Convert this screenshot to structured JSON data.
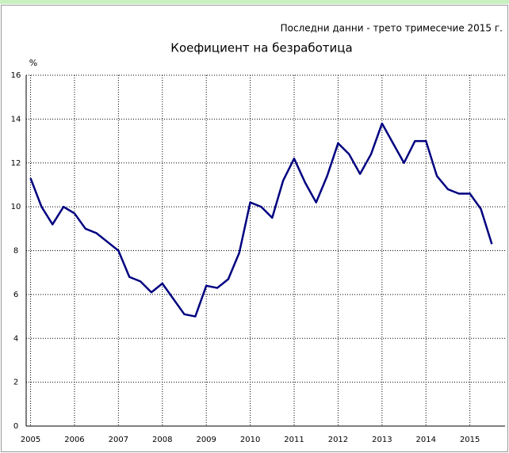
{
  "chart_data": {
    "type": "line",
    "title": "Коефициент на безработица",
    "subtitle": "Последни данни - трето тримесечие 2015 г.",
    "y_label": "%",
    "x": [
      2005,
      2005.25,
      2005.5,
      2005.75,
      2006,
      2006.25,
      2006.5,
      2006.75,
      2007,
      2007.25,
      2007.5,
      2007.75,
      2008,
      2008.25,
      2008.5,
      2008.75,
      2009,
      2009.25,
      2009.5,
      2009.75,
      2010,
      2010.25,
      2010.5,
      2010.75,
      2011,
      2011.25,
      2011.5,
      2011.75,
      2012,
      2012.25,
      2012.5,
      2012.75,
      2013,
      2013.25,
      2013.5,
      2013.75,
      2014,
      2014.25,
      2014.5,
      2014.75,
      2015,
      2015.25,
      2015.5
    ],
    "series": [
      {
        "name": "Коефициент на безработица",
        "color": "#000080",
        "values": [
          11.3,
          10.0,
          9.2,
          10.0,
          9.7,
          9.0,
          8.8,
          8.4,
          8.0,
          6.8,
          6.6,
          6.1,
          6.5,
          5.8,
          5.1,
          5.0,
          6.4,
          6.3,
          6.7,
          7.9,
          10.2,
          10.0,
          9.5,
          11.2,
          12.2,
          11.1,
          10.2,
          11.4,
          12.9,
          12.4,
          11.5,
          12.4,
          13.8,
          12.9,
          12.0,
          13.0,
          13.0,
          11.4,
          10.8,
          10.6,
          10.6,
          9.9,
          8.3
        ]
      }
    ],
    "xlim": [
      2004.9,
      2015.8
    ],
    "xticks": [
      2005,
      2006,
      2007,
      2008,
      2009,
      2010,
      2011,
      2012,
      2013,
      2014,
      2015
    ],
    "ylim": [
      0,
      16
    ],
    "yticks": [
      0,
      2,
      4,
      6,
      8,
      10,
      12,
      14,
      16
    ],
    "grid": true
  }
}
